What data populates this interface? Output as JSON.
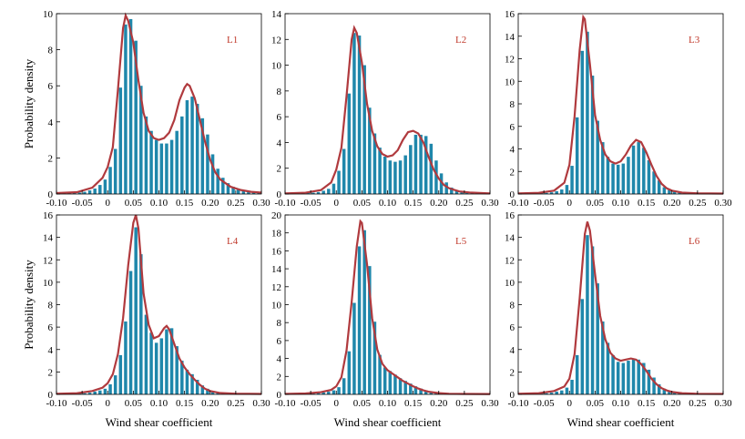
{
  "colors": {
    "bar": "#1f87ab",
    "curve": "#b03a3e",
    "label": "#c0392b"
  },
  "chart_data": [
    {
      "type": "bar",
      "title": "L1",
      "xlabel": "",
      "ylabel": "Probability density",
      "xlim": [
        -0.1,
        0.3
      ],
      "ylim": [
        0,
        10
      ],
      "xticks": [
        "-0.10",
        "-0.05",
        "0",
        "0.05",
        "0.10",
        "0.15",
        "0.20",
        "0.25",
        "0.30"
      ],
      "yticks": [
        "0",
        "2",
        "4",
        "6",
        "8",
        "10"
      ],
      "bin_width": 0.01,
      "x": [
        -0.09,
        -0.08,
        -0.07,
        -0.06,
        -0.05,
        -0.04,
        -0.03,
        -0.02,
        -0.01,
        0.0,
        0.01,
        0.02,
        0.03,
        0.04,
        0.05,
        0.06,
        0.07,
        0.08,
        0.09,
        0.1,
        0.11,
        0.12,
        0.13,
        0.14,
        0.15,
        0.16,
        0.17,
        0.18,
        0.19,
        0.2,
        0.21,
        0.22,
        0.23,
        0.24,
        0.25,
        0.26,
        0.27,
        0.28,
        0.29
      ],
      "values": [
        0.05,
        0.05,
        0.06,
        0.08,
        0.12,
        0.2,
        0.3,
        0.5,
        0.8,
        1.5,
        2.5,
        5.9,
        9.4,
        9.7,
        8.5,
        6.0,
        4.3,
        3.5,
        3.0,
        2.8,
        2.8,
        3.0,
        3.5,
        4.3,
        5.2,
        5.4,
        5.0,
        4.2,
        3.3,
        2.2,
        1.4,
        0.9,
        0.6,
        0.4,
        0.3,
        0.2,
        0.15,
        0.1,
        0.05
      ],
      "curve": [
        [
          -0.1,
          0.05
        ],
        [
          -0.06,
          0.1
        ],
        [
          -0.03,
          0.35
        ],
        [
          -0.01,
          0.9
        ],
        [
          0.0,
          1.5
        ],
        [
          0.01,
          2.6
        ],
        [
          0.02,
          5.8
        ],
        [
          0.03,
          9.2
        ],
        [
          0.035,
          9.9
        ],
        [
          0.04,
          9.6
        ],
        [
          0.05,
          8.4
        ],
        [
          0.06,
          6.3
        ],
        [
          0.07,
          4.5
        ],
        [
          0.08,
          3.5
        ],
        [
          0.09,
          3.1
        ],
        [
          0.1,
          3.0
        ],
        [
          0.11,
          3.1
        ],
        [
          0.12,
          3.4
        ],
        [
          0.13,
          4.1
        ],
        [
          0.14,
          5.2
        ],
        [
          0.15,
          5.9
        ],
        [
          0.155,
          6.1
        ],
        [
          0.16,
          6.0
        ],
        [
          0.17,
          5.3
        ],
        [
          0.18,
          4.1
        ],
        [
          0.19,
          2.9
        ],
        [
          0.2,
          1.9
        ],
        [
          0.21,
          1.2
        ],
        [
          0.22,
          0.8
        ],
        [
          0.24,
          0.4
        ],
        [
          0.26,
          0.22
        ],
        [
          0.28,
          0.12
        ],
        [
          0.3,
          0.08
        ]
      ]
    },
    {
      "type": "bar",
      "title": "L2",
      "xlabel": "",
      "ylabel": "",
      "xlim": [
        -0.1,
        0.3
      ],
      "ylim": [
        0,
        14
      ],
      "xticks": [
        "-0.10",
        "-0.05",
        "0",
        "0.05",
        "0.10",
        "0.15",
        "0.20",
        "0.25",
        "0.30"
      ],
      "yticks": [
        "0",
        "2",
        "4",
        "6",
        "8",
        "10",
        "12",
        "14"
      ],
      "bin_width": 0.01,
      "x": [
        -0.09,
        -0.08,
        -0.07,
        -0.06,
        -0.05,
        -0.04,
        -0.03,
        -0.02,
        -0.01,
        0.0,
        0.01,
        0.02,
        0.03,
        0.04,
        0.05,
        0.06,
        0.07,
        0.08,
        0.09,
        0.1,
        0.11,
        0.12,
        0.13,
        0.14,
        0.15,
        0.16,
        0.17,
        0.18,
        0.19,
        0.2,
        0.21,
        0.22,
        0.23,
        0.24,
        0.25,
        0.26,
        0.27,
        0.28,
        0.29
      ],
      "values": [
        0.05,
        0.05,
        0.06,
        0.08,
        0.1,
        0.15,
        0.25,
        0.4,
        0.8,
        1.8,
        3.5,
        7.8,
        12.5,
        12.3,
        10.0,
        6.7,
        4.7,
        3.6,
        2.9,
        2.6,
        2.5,
        2.6,
        3.0,
        3.8,
        4.6,
        4.6,
        4.5,
        3.9,
        2.6,
        1.6,
        0.9,
        0.5,
        0.3,
        0.2,
        0.15,
        0.1,
        0.08,
        0.06,
        0.05
      ],
      "curve": [
        [
          -0.1,
          0.05
        ],
        [
          -0.06,
          0.1
        ],
        [
          -0.03,
          0.3
        ],
        [
          -0.01,
          0.9
        ],
        [
          0.0,
          1.9
        ],
        [
          0.01,
          3.6
        ],
        [
          0.02,
          7.6
        ],
        [
          0.03,
          12.0
        ],
        [
          0.035,
          12.9
        ],
        [
          0.04,
          12.5
        ],
        [
          0.05,
          10.2
        ],
        [
          0.06,
          7.0
        ],
        [
          0.07,
          4.9
        ],
        [
          0.08,
          3.7
        ],
        [
          0.09,
          3.1
        ],
        [
          0.1,
          2.9
        ],
        [
          0.11,
          3.0
        ],
        [
          0.12,
          3.4
        ],
        [
          0.13,
          4.2
        ],
        [
          0.14,
          4.8
        ],
        [
          0.15,
          4.9
        ],
        [
          0.16,
          4.7
        ],
        [
          0.17,
          4.0
        ],
        [
          0.18,
          2.9
        ],
        [
          0.19,
          1.9
        ],
        [
          0.2,
          1.2
        ],
        [
          0.21,
          0.7
        ],
        [
          0.22,
          0.45
        ],
        [
          0.24,
          0.2
        ],
        [
          0.26,
          0.12
        ],
        [
          0.28,
          0.08
        ],
        [
          0.3,
          0.05
        ]
      ]
    },
    {
      "type": "bar",
      "title": "L3",
      "xlabel": "",
      "ylabel": "",
      "xlim": [
        -0.1,
        0.3
      ],
      "ylim": [
        0,
        16
      ],
      "xticks": [
        "-0.10",
        "-0.05",
        "0",
        "0.05",
        "0.10",
        "0.15",
        "0.20",
        "0.25",
        "0.30"
      ],
      "yticks": [
        "0",
        "2",
        "4",
        "6",
        "8",
        "10",
        "12",
        "14",
        "16"
      ],
      "bin_width": 0.01,
      "x": [
        -0.09,
        -0.08,
        -0.07,
        -0.06,
        -0.05,
        -0.04,
        -0.03,
        -0.02,
        -0.01,
        0.0,
        0.01,
        0.02,
        0.03,
        0.04,
        0.05,
        0.06,
        0.07,
        0.08,
        0.09,
        0.1,
        0.11,
        0.12,
        0.13,
        0.14,
        0.15,
        0.16,
        0.17,
        0.18,
        0.19,
        0.2,
        0.21,
        0.22,
        0.23,
        0.24,
        0.25,
        0.26,
        0.27,
        0.28,
        0.29
      ],
      "values": [
        0.05,
        0.05,
        0.06,
        0.08,
        0.1,
        0.15,
        0.25,
        0.4,
        0.8,
        2.5,
        6.8,
        12.7,
        14.4,
        10.5,
        6.5,
        4.6,
        3.3,
        2.7,
        2.6,
        2.7,
        3.3,
        4.3,
        4.6,
        4.1,
        3.0,
        2.0,
        1.2,
        0.6,
        0.35,
        0.2,
        0.12,
        0.08,
        0.06,
        0.05,
        0.05,
        0.05,
        0.05,
        0.05,
        0.05
      ],
      "curve": [
        [
          -0.1,
          0.05
        ],
        [
          -0.06,
          0.1
        ],
        [
          -0.03,
          0.3
        ],
        [
          -0.01,
          1.0
        ],
        [
          0.0,
          2.6
        ],
        [
          0.01,
          6.9
        ],
        [
          0.02,
          12.8
        ],
        [
          0.027,
          15.7
        ],
        [
          0.03,
          15.5
        ],
        [
          0.04,
          11.5
        ],
        [
          0.05,
          7.0
        ],
        [
          0.06,
          4.8
        ],
        [
          0.07,
          3.5
        ],
        [
          0.08,
          2.9
        ],
        [
          0.09,
          2.7
        ],
        [
          0.1,
          2.9
        ],
        [
          0.11,
          3.5
        ],
        [
          0.12,
          4.3
        ],
        [
          0.13,
          4.8
        ],
        [
          0.14,
          4.6
        ],
        [
          0.15,
          3.7
        ],
        [
          0.16,
          2.6
        ],
        [
          0.17,
          1.6
        ],
        [
          0.18,
          0.9
        ],
        [
          0.19,
          0.5
        ],
        [
          0.2,
          0.3
        ],
        [
          0.22,
          0.12
        ],
        [
          0.25,
          0.06
        ],
        [
          0.3,
          0.04
        ]
      ]
    },
    {
      "type": "bar",
      "title": "L4",
      "xlabel": "Wind shear coefficient",
      "ylabel": "Probability density",
      "xlim": [
        -0.1,
        0.3
      ],
      "ylim": [
        0,
        16
      ],
      "xticks": [
        "-0.10",
        "-0.05",
        "0",
        "0.05",
        "0.10",
        "0.15",
        "0.20",
        "0.25",
        "0.30"
      ],
      "yticks": [
        "0",
        "2",
        "4",
        "6",
        "8",
        "10",
        "12",
        "14",
        "16"
      ],
      "bin_width": 0.01,
      "x": [
        -0.09,
        -0.08,
        -0.07,
        -0.06,
        -0.05,
        -0.04,
        -0.03,
        -0.02,
        -0.01,
        0.0,
        0.01,
        0.02,
        0.03,
        0.04,
        0.05,
        0.06,
        0.07,
        0.08,
        0.09,
        0.1,
        0.11,
        0.12,
        0.13,
        0.14,
        0.15,
        0.16,
        0.17,
        0.18,
        0.19,
        0.2,
        0.21,
        0.22,
        0.23,
        0.24,
        0.25,
        0.26,
        0.27,
        0.28,
        0.29
      ],
      "values": [
        0.05,
        0.05,
        0.06,
        0.08,
        0.1,
        0.15,
        0.25,
        0.35,
        0.5,
        0.9,
        1.7,
        3.5,
        6.5,
        11.0,
        14.9,
        12.5,
        7.1,
        5.5,
        4.6,
        5.0,
        5.8,
        5.9,
        4.3,
        3.0,
        2.2,
        1.8,
        1.3,
        0.8,
        0.5,
        0.3,
        0.2,
        0.12,
        0.08,
        0.06,
        0.05,
        0.05,
        0.05,
        0.05,
        0.05
      ],
      "curve": [
        [
          -0.1,
          0.05
        ],
        [
          -0.06,
          0.1
        ],
        [
          -0.03,
          0.3
        ],
        [
          -0.01,
          0.6
        ],
        [
          0.0,
          1.0
        ],
        [
          0.01,
          1.8
        ],
        [
          0.02,
          3.6
        ],
        [
          0.03,
          6.8
        ],
        [
          0.04,
          11.5
        ],
        [
          0.05,
          15.3
        ],
        [
          0.055,
          16.0
        ],
        [
          0.06,
          14.8
        ],
        [
          0.07,
          9.0
        ],
        [
          0.08,
          6.2
        ],
        [
          0.09,
          5.0
        ],
        [
          0.1,
          5.2
        ],
        [
          0.11,
          5.9
        ],
        [
          0.115,
          6.1
        ],
        [
          0.12,
          5.8
        ],
        [
          0.13,
          4.5
        ],
        [
          0.14,
          3.2
        ],
        [
          0.15,
          2.4
        ],
        [
          0.16,
          1.8
        ],
        [
          0.17,
          1.3
        ],
        [
          0.18,
          0.85
        ],
        [
          0.19,
          0.5
        ],
        [
          0.2,
          0.3
        ],
        [
          0.22,
          0.12
        ],
        [
          0.25,
          0.06
        ],
        [
          0.3,
          0.04
        ]
      ]
    },
    {
      "type": "bar",
      "title": "L5",
      "xlabel": "Wind shear coefficient",
      "ylabel": "",
      "xlim": [
        -0.1,
        0.3
      ],
      "ylim": [
        0,
        20
      ],
      "xticks": [
        "-0.10",
        "-0.05",
        "0",
        "0.05",
        "0.10",
        "0.15",
        "0.20",
        "0.25",
        "0.30"
      ],
      "yticks": [
        "0",
        "2",
        "4",
        "6",
        "8",
        "10",
        "12",
        "14",
        "16",
        "18",
        "20"
      ],
      "bin_width": 0.01,
      "x": [
        -0.09,
        -0.08,
        -0.07,
        -0.06,
        -0.05,
        -0.04,
        -0.03,
        -0.02,
        -0.01,
        0.0,
        0.01,
        0.02,
        0.03,
        0.04,
        0.05,
        0.06,
        0.07,
        0.08,
        0.09,
        0.1,
        0.11,
        0.12,
        0.13,
        0.14,
        0.15,
        0.16,
        0.17,
        0.18,
        0.19,
        0.2,
        0.21,
        0.22,
        0.23,
        0.24,
        0.25,
        0.26,
        0.27,
        0.28,
        0.29
      ],
      "values": [
        0.05,
        0.05,
        0.06,
        0.08,
        0.1,
        0.15,
        0.2,
        0.3,
        0.45,
        0.8,
        1.8,
        4.8,
        10.2,
        16.5,
        18.3,
        14.3,
        8.1,
        4.4,
        3.0,
        2.6,
        2.2,
        1.8,
        1.5,
        1.2,
        0.9,
        0.65,
        0.45,
        0.3,
        0.2,
        0.12,
        0.08,
        0.06,
        0.05,
        0.05,
        0.05,
        0.05,
        0.05,
        0.05,
        0.05
      ],
      "curve": [
        [
          -0.1,
          0.05
        ],
        [
          -0.06,
          0.1
        ],
        [
          -0.03,
          0.25
        ],
        [
          -0.01,
          0.5
        ],
        [
          0.0,
          0.9
        ],
        [
          0.01,
          1.9
        ],
        [
          0.02,
          4.9
        ],
        [
          0.03,
          10.3
        ],
        [
          0.04,
          16.5
        ],
        [
          0.047,
          19.3
        ],
        [
          0.05,
          19.1
        ],
        [
          0.06,
          14.5
        ],
        [
          0.07,
          8.5
        ],
        [
          0.08,
          5.0
        ],
        [
          0.09,
          3.4
        ],
        [
          0.1,
          2.7
        ],
        [
          0.11,
          2.3
        ],
        [
          0.12,
          1.9
        ],
        [
          0.13,
          1.5
        ],
        [
          0.14,
          1.2
        ],
        [
          0.15,
          0.9
        ],
        [
          0.16,
          0.65
        ],
        [
          0.17,
          0.45
        ],
        [
          0.18,
          0.3
        ],
        [
          0.2,
          0.14
        ],
        [
          0.22,
          0.07
        ],
        [
          0.25,
          0.05
        ],
        [
          0.3,
          0.04
        ]
      ]
    },
    {
      "type": "bar",
      "title": "L6",
      "xlabel": "Wind shear coefficient",
      "ylabel": "",
      "xlim": [
        -0.1,
        0.3
      ],
      "ylim": [
        0,
        16
      ],
      "xticks": [
        "-0.10",
        "-0.05",
        "0",
        "0.05",
        "0.10",
        "0.15",
        "0.20",
        "0.25",
        "0.30"
      ],
      "yticks": [
        "0",
        "2",
        "4",
        "6",
        "8",
        "10",
        "12",
        "14",
        "16"
      ],
      "bin_width": 0.01,
      "x": [
        -0.09,
        -0.08,
        -0.07,
        -0.06,
        -0.05,
        -0.04,
        -0.03,
        -0.02,
        -0.01,
        0.0,
        0.01,
        0.02,
        0.03,
        0.04,
        0.05,
        0.06,
        0.07,
        0.08,
        0.09,
        0.1,
        0.11,
        0.12,
        0.13,
        0.14,
        0.15,
        0.16,
        0.17,
        0.18,
        0.19,
        0.2,
        0.21,
        0.22,
        0.23,
        0.24,
        0.25,
        0.26,
        0.27,
        0.28,
        0.29
      ],
      "values": [
        0.05,
        0.05,
        0.06,
        0.08,
        0.1,
        0.15,
        0.25,
        0.35,
        0.6,
        1.3,
        3.5,
        8.5,
        14.2,
        13.2,
        9.9,
        6.5,
        4.6,
        3.5,
        2.9,
        2.8,
        3.0,
        3.1,
        3.1,
        2.8,
        2.2,
        1.5,
        0.9,
        0.5,
        0.3,
        0.2,
        0.12,
        0.08,
        0.06,
        0.05,
        0.05,
        0.05,
        0.05,
        0.05,
        0.05
      ],
      "curve": [
        [
          -0.1,
          0.05
        ],
        [
          -0.06,
          0.1
        ],
        [
          -0.03,
          0.3
        ],
        [
          -0.01,
          0.7
        ],
        [
          0.0,
          1.4
        ],
        [
          0.01,
          3.6
        ],
        [
          0.02,
          8.6
        ],
        [
          0.03,
          14.3
        ],
        [
          0.035,
          15.4
        ],
        [
          0.04,
          14.6
        ],
        [
          0.05,
          10.7
        ],
        [
          0.06,
          7.0
        ],
        [
          0.07,
          4.9
        ],
        [
          0.08,
          3.7
        ],
        [
          0.09,
          3.2
        ],
        [
          0.1,
          3.0
        ],
        [
          0.11,
          3.1
        ],
        [
          0.12,
          3.2
        ],
        [
          0.13,
          3.1
        ],
        [
          0.14,
          2.7
        ],
        [
          0.15,
          2.1
        ],
        [
          0.16,
          1.4
        ],
        [
          0.17,
          0.9
        ],
        [
          0.18,
          0.55
        ],
        [
          0.19,
          0.35
        ],
        [
          0.2,
          0.22
        ],
        [
          0.22,
          0.1
        ],
        [
          0.25,
          0.05
        ],
        [
          0.3,
          0.04
        ]
      ]
    }
  ]
}
